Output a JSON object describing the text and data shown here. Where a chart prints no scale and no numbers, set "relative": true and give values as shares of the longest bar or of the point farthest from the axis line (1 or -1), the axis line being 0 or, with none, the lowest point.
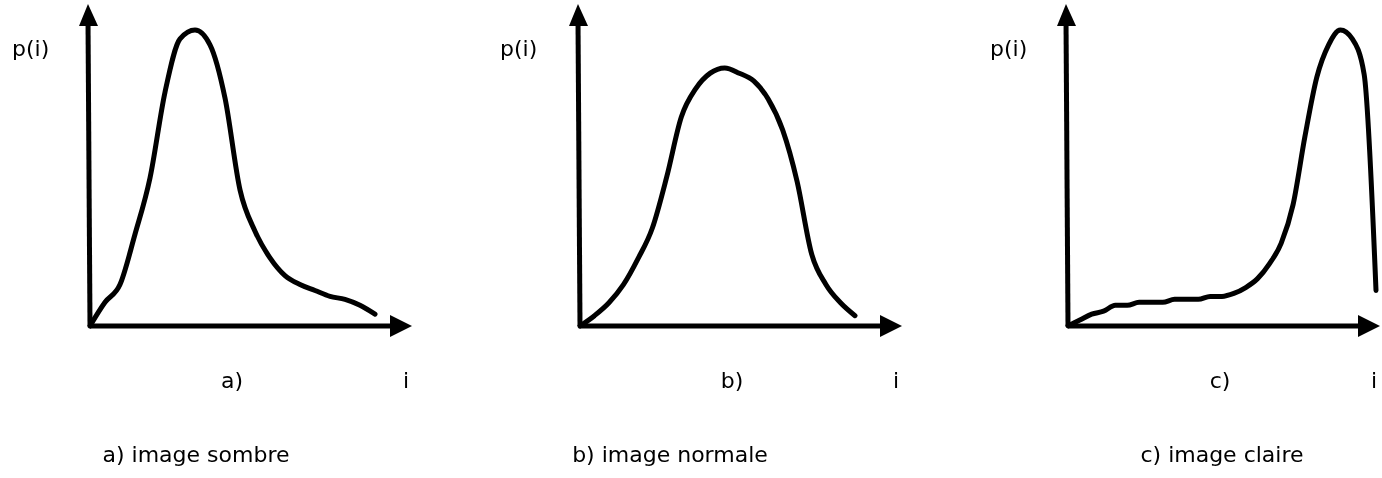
{
  "chart_data": [
    {
      "type": "line",
      "relative": true,
      "title": "a) image sombre",
      "xlabel": "i",
      "ylabel": "p(i)",
      "annotations": [
        "a)"
      ],
      "color": "#000000",
      "categories": [
        null,
        null,
        null,
        null,
        null,
        null,
        null,
        null,
        null,
        null,
        null,
        null,
        null,
        null,
        null,
        null,
        null,
        null,
        null,
        null
      ],
      "values": [
        0,
        0.08,
        0.14,
        0.31,
        0.5,
        0.79,
        0.97,
        1,
        0.95,
        0.77,
        0.46,
        0.32,
        0.23,
        0.17,
        0.14,
        0.12,
        0.1,
        0.09,
        0.07,
        0.04
      ]
    },
    {
      "type": "line",
      "relative": true,
      "title": "b) image normale",
      "xlabel": "i",
      "ylabel": "p(i)",
      "annotations": [
        "b)"
      ],
      "color": "#000000",
      "categories": [
        null,
        null,
        null,
        null,
        null,
        null,
        null,
        null,
        null,
        null,
        null,
        null,
        null,
        null,
        null,
        null,
        null,
        null,
        null,
        null
      ],
      "values": [
        0,
        0.04,
        0.09,
        0.16,
        0.26,
        0.38,
        0.58,
        0.81,
        0.92,
        0.98,
        1,
        0.98,
        0.95,
        0.88,
        0.76,
        0.56,
        0.28,
        0.16,
        0.09,
        0.04
      ]
    },
    {
      "type": "line",
      "relative": true,
      "title": "c) image claire",
      "xlabel": "i",
      "ylabel": "p(i)",
      "annotations": [
        "c)"
      ],
      "color": "#000000",
      "categories": [
        null,
        null,
        null,
        null,
        null,
        null,
        null,
        null,
        null,
        null,
        null,
        null,
        null,
        null,
        null,
        null,
        null,
        null,
        null,
        null,
        null,
        null,
        null,
        null,
        null,
        null,
        null
      ],
      "values": [
        0,
        0.02,
        0.04,
        0.05,
        0.07,
        0.07,
        0.08,
        0.08,
        0.08,
        0.09,
        0.09,
        0.09,
        0.1,
        0.1,
        0.11,
        0.13,
        0.16,
        0.21,
        0.28,
        0.41,
        0.64,
        0.84,
        0.95,
        1,
        0.97,
        0.85,
        0.12
      ]
    }
  ]
}
